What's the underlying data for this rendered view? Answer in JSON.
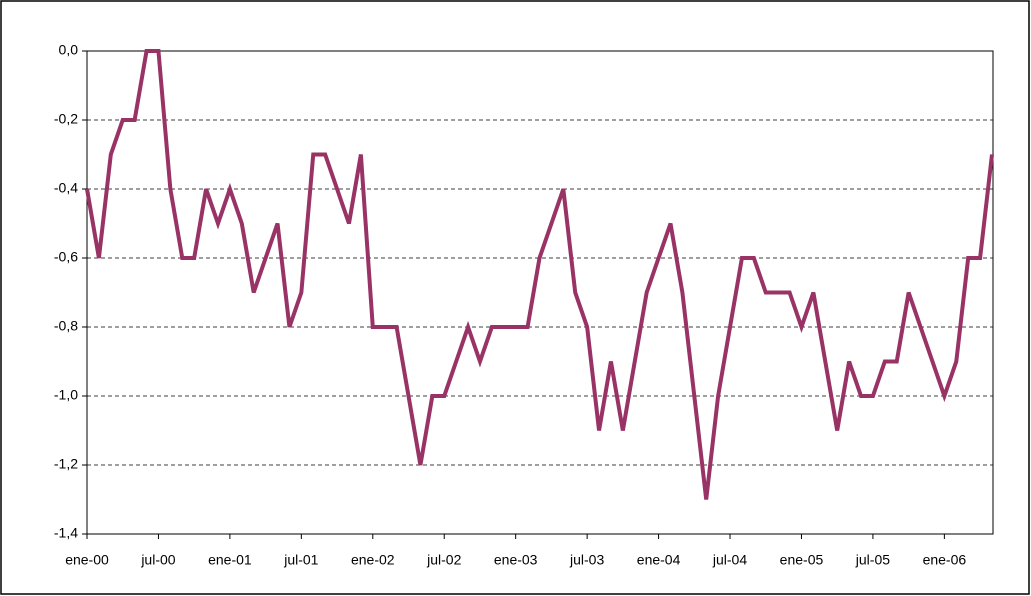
{
  "chart_data": {
    "type": "line",
    "categories": [
      "ene-00",
      null,
      null,
      null,
      null,
      null,
      "jul-00",
      null,
      null,
      null,
      null,
      null,
      "ene-01",
      null,
      null,
      null,
      null,
      null,
      "jul-01",
      null,
      null,
      null,
      null,
      null,
      "ene-02",
      null,
      null,
      null,
      null,
      null,
      "jul-02",
      null,
      null,
      null,
      null,
      null,
      "ene-03",
      null,
      null,
      null,
      null,
      null,
      "jul-03",
      null,
      null,
      null,
      null,
      null,
      "ene-04",
      null,
      null,
      null,
      null,
      null,
      "jul-04",
      null,
      null,
      null,
      null,
      null,
      "ene-05",
      null,
      null,
      null,
      null,
      null,
      "jul-05",
      null,
      null,
      null,
      null,
      null,
      "ene-06",
      null,
      null,
      null,
      null
    ],
    "series": [
      {
        "color": "#993366",
        "values": [
          -0.4,
          -0.6,
          -0.3,
          -0.2,
          -0.2,
          0.0,
          0.0,
          -0.4,
          -0.6,
          -0.6,
          -0.4,
          -0.5,
          -0.4,
          -0.5,
          -0.7,
          -0.6,
          -0.5,
          -0.8,
          -0.7,
          -0.3,
          -0.3,
          -0.4,
          -0.5,
          -0.3,
          -0.8,
          -0.8,
          -0.8,
          -1.0,
          -1.2,
          -1.0,
          -1.0,
          -0.9,
          -0.8,
          -0.9,
          -0.8,
          -0.8,
          -0.8,
          -0.8,
          -0.6,
          -0.5,
          -0.4,
          -0.7,
          -0.8,
          -1.1,
          -0.9,
          -1.1,
          -0.9,
          -0.7,
          -0.6,
          -0.5,
          -0.7,
          -1.0,
          -1.3,
          -1.0,
          -0.8,
          -0.6,
          -0.6,
          -0.7,
          -0.7,
          -0.7,
          -0.8,
          -0.7,
          -0.9,
          -1.1,
          -0.9,
          -1.0,
          -1.0,
          -0.9,
          -0.9,
          -0.7,
          -0.8,
          -0.9,
          -1.0,
          -0.9,
          -0.6,
          -0.6,
          -0.3
        ]
      }
    ],
    "ylim": [
      -1.4,
      0.0
    ],
    "yticks": [
      {
        "value": 0.0,
        "label": "0,0"
      },
      {
        "value": -0.2,
        "label": "-0,2"
      },
      {
        "value": -0.4,
        "label": "-0,4"
      },
      {
        "value": -0.6,
        "label": "-0,6"
      },
      {
        "value": -0.8,
        "label": "-0,8"
      },
      {
        "value": -1.0,
        "label": "-1,0"
      },
      {
        "value": -1.2,
        "label": "-1,2"
      },
      {
        "value": -1.4,
        "label": "-1,4"
      }
    ],
    "grid": true
  }
}
